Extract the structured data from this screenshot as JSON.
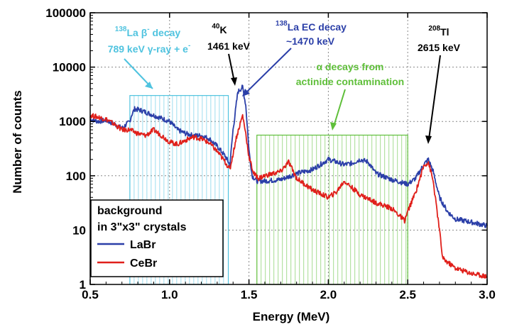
{
  "chart_data": {
    "type": "line",
    "title": "",
    "xlabel": "Energy (MeV)",
    "ylabel": "Number of counts",
    "xlim": [
      0.5,
      3.0
    ],
    "ylim": [
      1,
      100000
    ],
    "yscale": "log",
    "grid": true,
    "x_ticks": [
      "0.5",
      "1.0",
      "1.5",
      "2.0",
      "2.5",
      "3.0"
    ],
    "y_ticks": [
      "1",
      "10",
      "100",
      "1000",
      "10000",
      "100000"
    ],
    "legend": {
      "position": "bottom-left",
      "title_lines": [
        "background",
        "in 3\"x3\" crystals"
      ],
      "entries": [
        "LaBr",
        "CeBr"
      ]
    },
    "series": [
      {
        "name": "LaBr",
        "color": "#2b3fa8",
        "x": [
          0.5,
          0.55,
          0.6,
          0.65,
          0.7,
          0.75,
          0.76,
          0.78,
          0.82,
          0.9,
          1.0,
          1.05,
          1.1,
          1.15,
          1.2,
          1.25,
          1.3,
          1.35,
          1.38,
          1.4,
          1.43,
          1.46,
          1.48,
          1.5,
          1.52,
          1.55,
          1.6,
          1.7,
          1.8,
          1.9,
          2.0,
          2.05,
          2.1,
          2.15,
          2.2,
          2.25,
          2.3,
          2.4,
          2.5,
          2.55,
          2.6,
          2.63,
          2.66,
          2.7,
          2.75,
          2.8,
          2.9,
          3.0
        ],
        "y": [
          1100,
          1000,
          1050,
          900,
          750,
          1000,
          1300,
          1700,
          1600,
          1300,
          1000,
          700,
          600,
          550,
          550,
          480,
          350,
          230,
          160,
          700,
          3500,
          4300,
          2000,
          300,
          100,
          80,
          80,
          85,
          110,
          130,
          200,
          180,
          160,
          170,
          200,
          180,
          110,
          85,
          70,
          90,
          160,
          200,
          120,
          40,
          22,
          16,
          14,
          12
        ]
      },
      {
        "name": "CeBr",
        "color": "#e0201b",
        "x": [
          0.5,
          0.55,
          0.6,
          0.65,
          0.7,
          0.75,
          0.8,
          0.85,
          0.9,
          0.95,
          1.0,
          1.05,
          1.1,
          1.15,
          1.2,
          1.25,
          1.3,
          1.35,
          1.38,
          1.42,
          1.46,
          1.48,
          1.5,
          1.53,
          1.56,
          1.6,
          1.7,
          1.75,
          1.8,
          1.9,
          2.0,
          2.05,
          2.1,
          2.15,
          2.2,
          2.3,
          2.4,
          2.48,
          2.5,
          2.55,
          2.6,
          2.63,
          2.66,
          2.7,
          2.72,
          2.8,
          2.9,
          3.0
        ],
        "y": [
          1300,
          1200,
          1100,
          900,
          700,
          700,
          600,
          550,
          700,
          550,
          420,
          380,
          450,
          520,
          480,
          400,
          280,
          180,
          130,
          500,
          1300,
          600,
          220,
          110,
          90,
          100,
          120,
          180,
          90,
          55,
          40,
          50,
          80,
          60,
          45,
          32,
          25,
          15,
          22,
          50,
          150,
          180,
          80,
          10,
          3,
          2,
          1.6,
          1.4
        ]
      }
    ],
    "annotations": [
      {
        "lines": [
          "138La β- decay",
          "789 keV γ-ray + e-"
        ],
        "color": "#4fc3df",
        "region": [
          0.75,
          1.37
        ],
        "region_top": 3000
      },
      {
        "lines": [
          "40K",
          "1461 keV"
        ],
        "color": "#000000"
      },
      {
        "lines": [
          "138La EC decay",
          "~1470 keV"
        ],
        "color": "#2b3fa8"
      },
      {
        "lines": [
          "α decays from",
          "actinide contamination"
        ],
        "color": "#5fbf3a",
        "region": [
          1.55,
          2.5
        ],
        "region_top": 560
      },
      {
        "lines": [
          "208Tl",
          "2615 keV"
        ],
        "color": "#000000"
      }
    ]
  }
}
